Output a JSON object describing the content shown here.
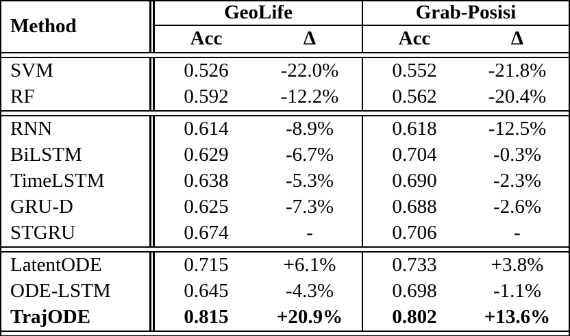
{
  "table": {
    "method_header": "Method",
    "groups": [
      {
        "label": "GeoLife",
        "columns": [
          "Acc",
          "Δ"
        ]
      },
      {
        "label": "Grab-Posisi",
        "columns": [
          "Acc",
          "Δ"
        ]
      }
    ],
    "sections": [
      {
        "rows": [
          {
            "method": "SVM",
            "values": [
              "0.526",
              "-22.0%",
              "0.552",
              "-21.8%"
            ],
            "bold": false
          },
          {
            "method": "RF",
            "values": [
              "0.592",
              "-12.2%",
              "0.562",
              "-20.4%"
            ],
            "bold": false
          }
        ]
      },
      {
        "rows": [
          {
            "method": "RNN",
            "values": [
              "0.614",
              "-8.9%",
              "0.618",
              "-12.5%"
            ],
            "bold": false
          },
          {
            "method": "BiLSTM",
            "values": [
              "0.629",
              "-6.7%",
              "0.704",
              "-0.3%"
            ],
            "bold": false
          },
          {
            "method": "TimeLSTM",
            "values": [
              "0.638",
              "-5.3%",
              "0.690",
              "-2.3%"
            ],
            "bold": false
          },
          {
            "method": "GRU-D",
            "values": [
              "0.625",
              "-7.3%",
              "0.688",
              "-2.6%"
            ],
            "bold": false
          },
          {
            "method": "STGRU",
            "values": [
              "0.674",
              "-",
              "0.706",
              "-"
            ],
            "bold": false
          }
        ]
      },
      {
        "rows": [
          {
            "method": "LatentODE",
            "values": [
              "0.715",
              "+6.1%",
              "0.733",
              "+3.8%"
            ],
            "bold": false
          },
          {
            "method": "ODE-LSTM",
            "values": [
              "0.645",
              "-4.3%",
              "0.698",
              "-1.1%"
            ],
            "bold": false
          },
          {
            "method": "TrajODE",
            "values": [
              "0.815",
              "+20.9%",
              "0.802",
              "+13.6%"
            ],
            "bold": true
          }
        ]
      }
    ],
    "colors": {
      "text": "#000000",
      "background": "#ffffff",
      "border": "#000000"
    }
  }
}
